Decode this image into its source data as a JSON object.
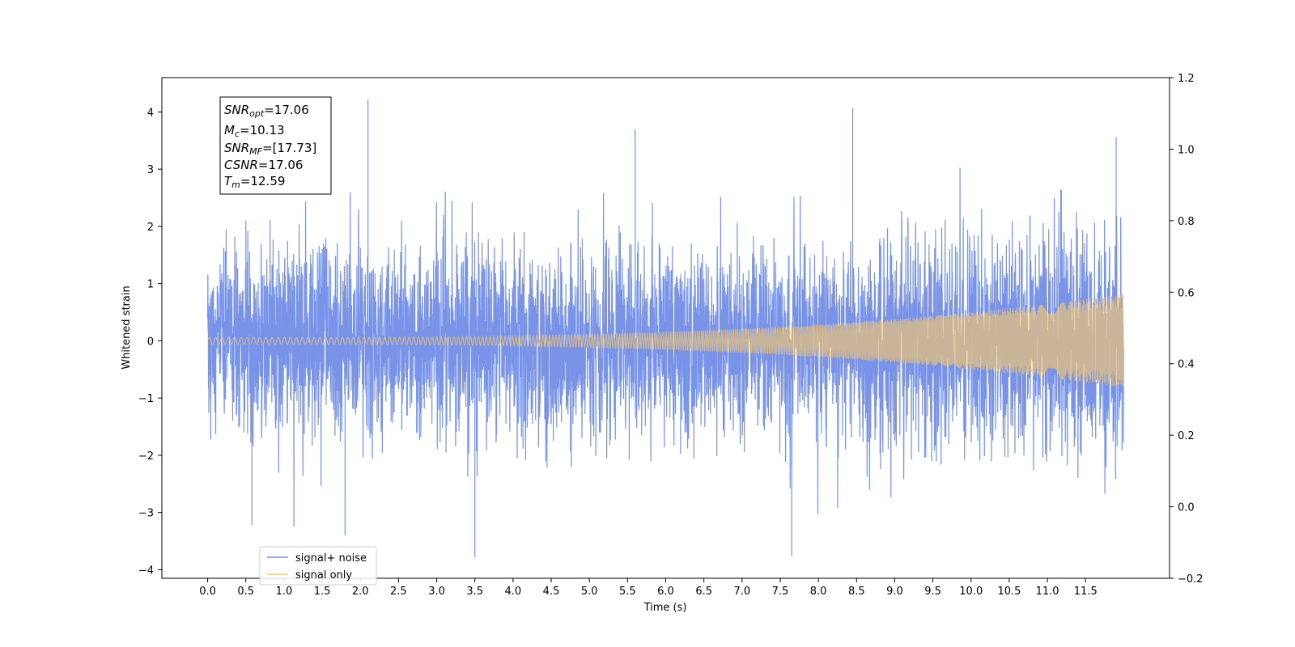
{
  "chart_data": {
    "type": "line",
    "xlabel": "Time (s)",
    "ylabel": "Whitened strain",
    "xlim": [
      -0.6,
      12.6
    ],
    "ylim": [
      -4.15,
      4.6
    ],
    "y2lim": [
      -0.2,
      1.2
    ],
    "x_ticks": [
      0.0,
      0.5,
      1.0,
      1.5,
      2.0,
      2.5,
      3.0,
      3.5,
      4.0,
      4.5,
      5.0,
      5.5,
      6.0,
      6.5,
      7.0,
      7.5,
      8.0,
      8.5,
      9.0,
      9.5,
      10.0,
      10.5,
      11.0,
      11.5
    ],
    "x_tick_labels": [
      "0.0",
      "0.5",
      "1.0",
      "1.5",
      "2.0",
      "2.5",
      "3.0",
      "3.5",
      "4.0",
      "4.5",
      "5.0",
      "5.5",
      "6.0",
      "6.5",
      "7.0",
      "7.5",
      "8.0",
      "8.5",
      "9.0",
      "9.5",
      "10.0",
      "10.5",
      "11.0",
      "11.5"
    ],
    "y_ticks": [
      -4,
      -3,
      -2,
      -1,
      0,
      1,
      2,
      3,
      4
    ],
    "y_tick_labels": [
      "−4",
      "−3",
      "−2",
      "−1",
      "0",
      "1",
      "2",
      "3",
      "4"
    ],
    "y2_ticks": [
      -0.2,
      0.0,
      0.2,
      0.4,
      0.6,
      0.8,
      1.0,
      1.2
    ],
    "y2_tick_labels": [
      "−0.2",
      "0.0",
      "0.2",
      "0.4",
      "0.6",
      "0.8",
      "1.0",
      "1.2"
    ],
    "grid": false,
    "legend_position": "lower-left",
    "series": [
      {
        "name": "signal+ noise",
        "color": "#7893e8",
        "x_range": [
          0.0,
          12.0
        ],
        "noise_sigma": 1.0,
        "max": 4.22,
        "min": -3.78,
        "notable_peaks": [
          {
            "x": 2.1,
            "y": 4.22
          },
          {
            "x": 8.45,
            "y": 4.07
          },
          {
            "x": 5.6,
            "y": 3.7
          },
          {
            "x": 11.9,
            "y": 3.56
          },
          {
            "x": 3.5,
            "y": -3.78
          },
          {
            "x": 7.65,
            "y": -3.77
          },
          {
            "x": 1.8,
            "y": -3.4
          },
          {
            "x": 0.58,
            "y": -3.22
          }
        ]
      },
      {
        "name": "signal only",
        "color": "#ffcc66",
        "x_range": [
          0.0,
          12.0
        ],
        "amplitude_start": 0.06,
        "amplitude_end": 0.82,
        "frequency_start_hz": 12,
        "frequency_end_hz": 40
      }
    ],
    "annotation": {
      "lines": [
        {
          "base": "SNR",
          "sub": "opt",
          "value": "=17.06"
        },
        {
          "base": "M",
          "sub": "c",
          "value": "=10.13"
        },
        {
          "base": "SNR",
          "sub": "MF",
          "value": "=[17.73]"
        },
        {
          "base": "CSNR",
          "sub": "",
          "value": "=17.06"
        },
        {
          "base": "T",
          "sub": "m",
          "value": "=12.59"
        }
      ]
    }
  }
}
